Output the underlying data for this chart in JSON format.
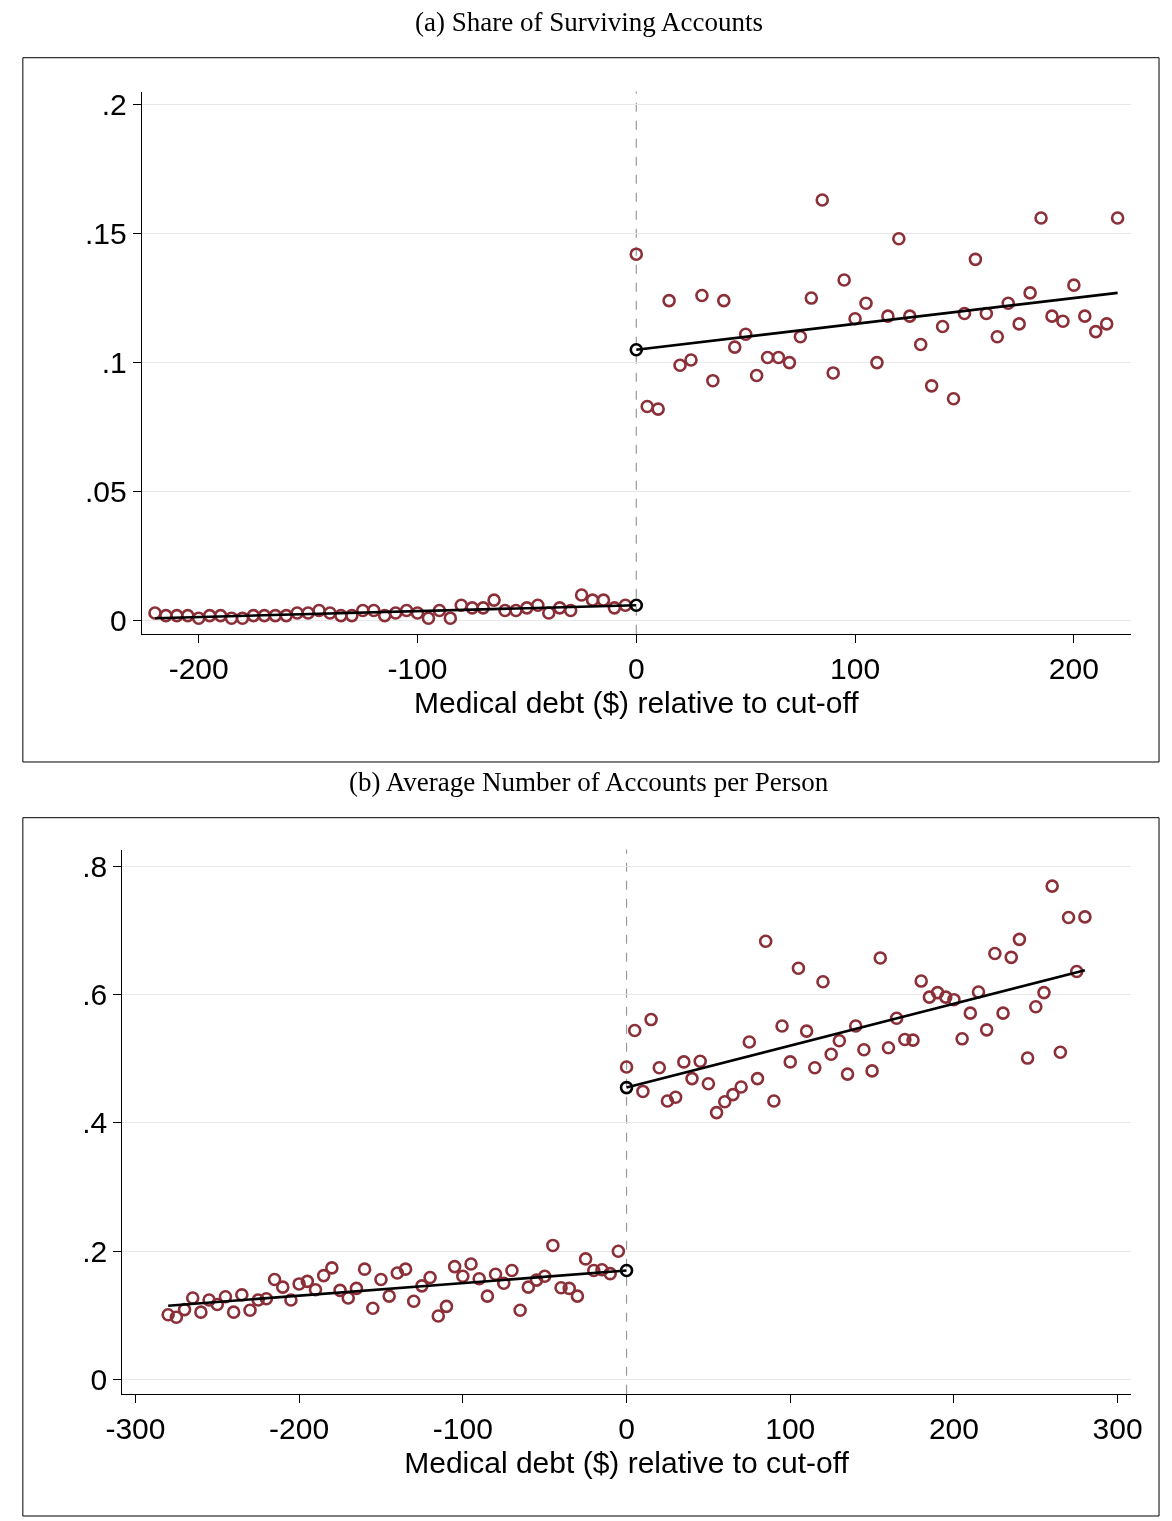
{
  "chart_data": [
    {
      "type": "scatter",
      "title": "(a) Share of Surviving Accounts",
      "xlabel": "Medical debt ($) relative to cut-off",
      "xlim": [
        -226,
        226
      ],
      "xticks": [
        -200,
        -100,
        0,
        100,
        200
      ],
      "ylim": [
        -0.005,
        0.205
      ],
      "yticks": [
        0,
        {
          "value": 0.05,
          "label": ".05"
        },
        {
          "value": 0.1,
          "label": ".1"
        },
        {
          "value": 0.15,
          "label": ".15"
        },
        {
          "value": 0.2,
          "label": ".2"
        }
      ],
      "grid": "y",
      "marker": "circle",
      "ref_lines": [
        {
          "axis": "x",
          "value": 0,
          "color": "#999999",
          "line_style": "dashed"
        }
      ],
      "series": [
        {
          "color": "#8b2f38",
          "x": [
            -220,
            -215,
            -210,
            -205,
            -200,
            -195,
            -190,
            -185,
            -180,
            -175,
            -170,
            -165,
            -160,
            -155,
            -150,
            -145,
            -140,
            -135,
            -130,
            -125,
            -120,
            -115,
            -110,
            -105,
            -100,
            -95,
            -90,
            -85,
            -80,
            -75,
            -70,
            -65,
            -60,
            -55,
            -50,
            -45,
            -40,
            -35,
            -30,
            -25,
            -20,
            -15,
            -10,
            -5
          ],
          "values": [
            0.003,
            0.002,
            0.002,
            0.002,
            0.001,
            0.002,
            0.002,
            0.001,
            0.001,
            0.002,
            0.002,
            0.002,
            0.002,
            0.003,
            0.003,
            0.004,
            0.003,
            0.002,
            0.002,
            0.004,
            0.004,
            0.002,
            0.003,
            0.004,
            0.003,
            0.001,
            0.004,
            0.001,
            0.006,
            0.005,
            0.005,
            0.008,
            0.004,
            0.004,
            0.005,
            0.006,
            0.003,
            0.005,
            0.004,
            0.01,
            0.008,
            0.008,
            0.005,
            0.006
          ]
        },
        {
          "color": "#8b2f38",
          "x": [
            0,
            5,
            10,
            15,
            20,
            25,
            30,
            35,
            40,
            45,
            50,
            55,
            60,
            65,
            70,
            75,
            80,
            85,
            90,
            95,
            100,
            105,
            110,
            115,
            120,
            125,
            130,
            135,
            140,
            145,
            150,
            155,
            160,
            165,
            170,
            175,
            180,
            185,
            190,
            195,
            200,
            205,
            210,
            215,
            220
          ],
          "values": [
            0.142,
            0.083,
            0.082,
            0.124,
            0.099,
            0.101,
            0.126,
            0.093,
            0.124,
            0.106,
            0.111,
            0.095,
            0.102,
            0.102,
            0.1,
            0.11,
            0.125,
            0.163,
            0.096,
            0.132,
            0.117,
            0.123,
            0.1,
            0.118,
            0.148,
            0.118,
            0.107,
            0.091,
            0.114,
            0.086,
            0.119,
            0.14,
            0.119,
            0.11,
            0.123,
            0.115,
            0.127,
            0.156,
            0.118,
            0.116,
            0.13,
            0.118,
            0.112,
            0.115,
            0.156
          ]
        },
        {
          "type": "line",
          "marker": "none",
          "color": "#000000",
          "x": [
            -220,
            0
          ],
          "values": [
            0.001,
            0.006
          ]
        },
        {
          "type": "line",
          "marker": "none",
          "color": "#000000",
          "x": [
            0,
            220
          ],
          "values": [
            0.105,
            0.127
          ]
        },
        {
          "color": "#000000",
          "x": [
            0
          ],
          "values": [
            0.006
          ]
        },
        {
          "color": "#000000",
          "x": [
            0
          ],
          "values": [
            0.105
          ]
        }
      ]
    },
    {
      "type": "scatter",
      "title": "(b) Average Number of Accounts per Person",
      "xlabel": "Medical debt ($) relative to cut-off",
      "xlim": [
        -308,
        308
      ],
      "xticks": [
        -300,
        -200,
        -100,
        0,
        100,
        200,
        300
      ],
      "ylim": [
        -0.022,
        0.826
      ],
      "yticks": [
        0,
        {
          "value": 0.2,
          "label": ".2"
        },
        {
          "value": 0.4,
          "label": ".4"
        },
        {
          "value": 0.6,
          "label": ".6"
        },
        {
          "value": 0.8,
          "label": ".8"
        }
      ],
      "grid": "y",
      "marker": "circle",
      "ref_lines": [
        {
          "axis": "x",
          "value": 0,
          "color": "#999999",
          "line_style": "dashed"
        }
      ],
      "series": [
        {
          "color": "#8b2f38",
          "x": [
            -280,
            -275,
            -270,
            -265,
            -260,
            -255,
            -250,
            -245,
            -240,
            -235,
            -230,
            -225,
            -220,
            -215,
            -210,
            -205,
            -200,
            -195,
            -190,
            -185,
            -180,
            -175,
            -170,
            -165,
            -160,
            -155,
            -150,
            -145,
            -140,
            -135,
            -130,
            -125,
            -120,
            -115,
            -110,
            -105,
            -100,
            -95,
            -90,
            -85,
            -80,
            -75,
            -70,
            -65,
            -60,
            -55,
            -50,
            -45,
            -40,
            -35,
            -30,
            -25,
            -20,
            -15,
            -10,
            -5
          ],
          "values": [
            0.101,
            0.097,
            0.109,
            0.127,
            0.105,
            0.124,
            0.117,
            0.129,
            0.105,
            0.132,
            0.108,
            0.124,
            0.126,
            0.156,
            0.144,
            0.124,
            0.149,
            0.153,
            0.14,
            0.162,
            0.174,
            0.139,
            0.127,
            0.142,
            0.172,
            0.111,
            0.156,
            0.13,
            0.166,
            0.172,
            0.122,
            0.146,
            0.159,
            0.099,
            0.114,
            0.176,
            0.161,
            0.18,
            0.157,
            0.13,
            0.164,
            0.15,
            0.17,
            0.108,
            0.144,
            0.155,
            0.161,
            0.209,
            0.143,
            0.142,
            0.13,
            0.188,
            0.17,
            0.171,
            0.165,
            0.2
          ]
        },
        {
          "color": "#8b2f38",
          "x": [
            0,
            5,
            10,
            15,
            20,
            25,
            30,
            35,
            40,
            45,
            50,
            55,
            60,
            65,
            70,
            75,
            80,
            85,
            90,
            95,
            100,
            105,
            110,
            115,
            120,
            125,
            130,
            135,
            140,
            145,
            150,
            155,
            160,
            165,
            170,
            175,
            180,
            185,
            190,
            195,
            200,
            205,
            210,
            215,
            220,
            225,
            230,
            235,
            240,
            245,
            250,
            255,
            260,
            265,
            270,
            275,
            280
          ],
          "values": [
            0.487,
            0.544,
            0.449,
            0.561,
            0.486,
            0.434,
            0.44,
            0.495,
            0.469,
            0.496,
            0.461,
            0.416,
            0.433,
            0.444,
            0.456,
            0.526,
            0.469,
            0.683,
            0.434,
            0.551,
            0.495,
            0.641,
            0.543,
            0.486,
            0.62,
            0.507,
            0.528,
            0.476,
            0.551,
            0.514,
            0.481,
            0.657,
            0.517,
            0.563,
            0.53,
            0.529,
            0.621,
            0.596,
            0.603,
            0.596,
            0.592,
            0.531,
            0.571,
            0.604,
            0.545,
            0.664,
            0.571,
            0.658,
            0.686,
            0.501,
            0.581,
            0.603,
            0.769,
            0.51,
            0.72,
            0.636,
            0.721
          ]
        },
        {
          "type": "line",
          "marker": "none",
          "color": "#000000",
          "x": [
            -280,
            0
          ],
          "values": [
            0.115,
            0.17
          ]
        },
        {
          "type": "line",
          "marker": "none",
          "color": "#000000",
          "x": [
            0,
            280
          ],
          "values": [
            0.455,
            0.638
          ]
        },
        {
          "color": "#000000",
          "x": [
            0
          ],
          "values": [
            0.17
          ]
        },
        {
          "color": "#000000",
          "x": [
            0
          ],
          "values": [
            0.455
          ]
        }
      ]
    }
  ]
}
